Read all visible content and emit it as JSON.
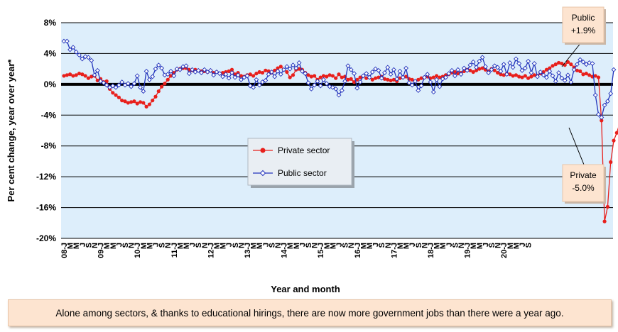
{
  "chart_data": {
    "type": "line",
    "ylabel": "Per cent change, year over year*",
    "xlabel": "Year and month",
    "ylim": [
      -20,
      8
    ],
    "y_ticks": [
      8,
      4,
      0,
      -4,
      -8,
      -12,
      -16,
      -20
    ],
    "y_tick_labels": [
      "8%",
      "4%",
      "0%",
      "-4%",
      "-8%",
      "-12%",
      "-16%",
      "-20%"
    ],
    "x_start": "2008-01",
    "x_end": "2020-09",
    "x_tick_labels": [
      "08-J",
      "M",
      "M",
      "J",
      "S",
      "N",
      "09-J",
      "M",
      "M",
      "J",
      "S",
      "N",
      "10-J",
      "M",
      "M",
      "J",
      "S",
      "N",
      "11-J",
      "M",
      "M",
      "J",
      "S",
      "N",
      "12-J",
      "M",
      "M",
      "J",
      "S",
      "N",
      "13-J",
      "M",
      "M",
      "J",
      "S",
      "N",
      "14-J",
      "M",
      "M",
      "J",
      "S",
      "N",
      "15-J",
      "M",
      "M",
      "J",
      "S",
      "N",
      "16-J",
      "M",
      "M",
      "J",
      "S",
      "N",
      "17-J",
      "M",
      "M",
      "J",
      "S",
      "N",
      "18-J",
      "M",
      "M",
      "J",
      "S",
      "N",
      "19-J",
      "M",
      "M",
      "J",
      "S",
      "N",
      "20-J",
      "M",
      "M",
      "J",
      "S"
    ],
    "x_tick_months": [
      1,
      3,
      5,
      7,
      9,
      11
    ],
    "grid": true,
    "legend_placement": "center",
    "series": [
      {
        "name": "Private sector",
        "color": "#e8201c",
        "marker": "circle",
        "values": [
          1.1,
          1.2,
          1.3,
          1.1,
          1.2,
          1.4,
          1.3,
          1.1,
          0.8,
          1.0,
          1.1,
          0.5,
          0.7,
          0.3,
          0.4,
          -0.6,
          -1.1,
          -1.4,
          -1.7,
          -2.1,
          -2.2,
          -2.4,
          -2.3,
          -2.2,
          -2.5,
          -2.3,
          -2.4,
          -2.9,
          -2.6,
          -2.1,
          -1.6,
          -0.9,
          -0.3,
          0.1,
          0.6,
          1.1,
          1.5,
          1.9,
          2.0,
          2.1,
          2.1,
          1.9,
          1.8,
          1.9,
          1.8,
          1.7,
          1.7,
          1.6,
          1.8,
          1.5,
          1.6,
          1.4,
          1.5,
          1.6,
          1.7,
          1.9,
          1.3,
          1.5,
          1.1,
          1.0,
          1.2,
          1.3,
          1.1,
          1.4,
          1.6,
          1.5,
          1.8,
          1.7,
          1.5,
          1.8,
          2.1,
          2.3,
          1.9,
          1.6,
          0.9,
          1.2,
          1.9,
          2.0,
          1.9,
          1.5,
          1.2,
          1.0,
          1.1,
          0.6,
          0.9,
          1.1,
          1.0,
          1.2,
          1.1,
          0.8,
          1.3,
          0.9,
          1.0,
          0.6,
          0.7,
          0.3,
          0.6,
          0.9,
          1.1,
          0.8,
          0.9,
          0.6,
          0.8,
          0.9,
          1.0,
          0.7,
          0.6,
          0.5,
          0.6,
          0.4,
          0.8,
          0.9,
          1.0,
          0.7,
          0.6,
          0.4,
          0.6,
          0.8,
          0.9,
          1.0,
          0.8,
          0.9,
          1.1,
          0.9,
          1.0,
          1.2,
          1.3,
          1.5,
          1.6,
          1.4,
          1.5,
          1.7,
          1.9,
          1.8,
          1.6,
          1.8,
          2.0,
          2.1,
          1.9,
          1.7,
          2.0,
          1.8,
          1.5,
          1.3,
          1.2,
          1.4,
          1.3,
          1.1,
          1.2,
          1.0,
          0.9,
          1.1,
          0.8,
          1.0,
          1.2,
          1.1,
          1.4,
          1.6,
          1.9,
          2.1,
          2.4,
          2.6,
          2.8,
          2.7,
          2.5,
          2.9,
          2.6,
          2.2,
          1.8,
          1.7,
          1.3,
          1.4,
          1.2,
          1.0,
          1.1,
          0.9,
          -4.7,
          -17.8,
          -15.9,
          -10.1,
          -7.3,
          -6.3,
          -5.0
        ]
      },
      {
        "name": "Public sector",
        "color": "#2233bb",
        "marker": "open-diamond",
        "values": [
          5.6,
          5.6,
          4.5,
          4.8,
          4.2,
          3.8,
          3.3,
          3.6,
          3.5,
          3.1,
          1.2,
          1.8,
          0.4,
          0.2,
          -0.1,
          -0.4,
          -0.2,
          -0.4,
          -0.1,
          0.3,
          -0.1,
          0.1,
          -0.3,
          0.1,
          1.1,
          -0.4,
          -0.9,
          1.7,
          0.6,
          1.0,
          2.0,
          2.5,
          2.1,
          1.2,
          1.3,
          1.7,
          1.1,
          2.0,
          1.9,
          2.3,
          2.4,
          1.4,
          1.9,
          1.6,
          1.8,
          1.5,
          1.9,
          1.6,
          1.8,
          1.2,
          1.6,
          1.4,
          1.0,
          1.3,
          0.8,
          1.5,
          0.9,
          1.2,
          0.6,
          0.9,
          1.1,
          -0.2,
          -0.4,
          0.6,
          -0.1,
          0.3,
          0.5,
          1.3,
          1.6,
          1.0,
          1.7,
          1.3,
          1.9,
          2.3,
          2.0,
          2.5,
          2.1,
          2.8,
          1.7,
          1.4,
          0.2,
          -0.6,
          -0.1,
          0.4,
          -0.2,
          0.6,
          0.1,
          -0.3,
          -0.4,
          -0.6,
          -1.4,
          -0.8,
          0.4,
          2.4,
          1.9,
          1.4,
          -0.5,
          0.3,
          1.1,
          1.4,
          0.9,
          1.6,
          2.0,
          1.8,
          0.8,
          1.5,
          2.2,
          1.3,
          1.9,
          0.7,
          1.7,
          0.9,
          2.1,
          0.2,
          -0.1,
          0.4,
          -0.8,
          -0.2,
          0.9,
          1.3,
          0.3,
          -1.0,
          0.6,
          -0.3,
          0.7,
          0.9,
          1.4,
          1.8,
          1.1,
          1.9,
          1.3,
          2.1,
          1.8,
          2.5,
          2.9,
          2.2,
          3.0,
          3.5,
          2.3,
          1.5,
          1.9,
          2.4,
          2.2,
          1.7,
          2.6,
          1.3,
          2.8,
          2.2,
          3.3,
          2.7,
          1.8,
          2.1,
          3.0,
          1.5,
          2.7,
          1.0,
          1.6,
          1.2,
          0.9,
          1.7,
          1.1,
          0.4,
          1.5,
          0.8,
          0.5,
          1.2,
          0.3,
          1.9,
          2.6,
          3.2,
          2.9,
          2.6,
          2.8,
          2.7,
          -1.4,
          -3.9,
          -4.3,
          -2.7,
          -2.2,
          -1.2,
          1.9
        ]
      }
    ],
    "annotations": [
      {
        "line1": "Public",
        "line2": "+1.9%"
      },
      {
        "line1": "Private",
        "line2": "-5.0%"
      }
    ]
  },
  "caption": "Alone among sectors, & thanks to educational hirings, there are now more government jobs than there were a year ago."
}
